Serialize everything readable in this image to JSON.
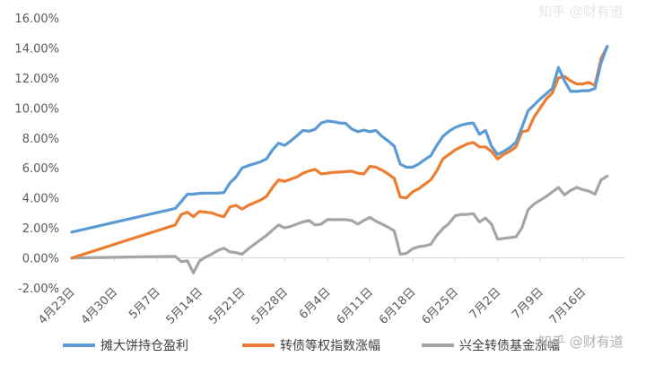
{
  "chart_data": {
    "type": "line",
    "title": "",
    "xlabel": "",
    "ylabel": "",
    "ylim": [
      -0.02,
      0.16
    ],
    "grid": false,
    "legend_position": "bottom",
    "y_ticks": [
      "-2.00%",
      "0.00%",
      "2.00%",
      "4.00%",
      "6.00%",
      "8.00%",
      "10.00%",
      "12.00%",
      "14.00%",
      "16.00%"
    ],
    "x_ticks": [
      {
        "label": "4月23日",
        "date": "2018-04-23"
      },
      {
        "label": "4月30日",
        "date": "2018-04-30"
      },
      {
        "label": "5月7日",
        "date": "2018-05-07"
      },
      {
        "label": "5月14日",
        "date": "2018-05-14"
      },
      {
        "label": "5月21日",
        "date": "2018-05-21"
      },
      {
        "label": "5月28日",
        "date": "2018-05-28"
      },
      {
        "label": "6月4日",
        "date": "2018-06-04"
      },
      {
        "label": "6月11日",
        "date": "2018-06-11"
      },
      {
        "label": "6月18日",
        "date": "2018-06-18"
      },
      {
        "label": "6月25日",
        "date": "2018-06-25"
      },
      {
        "label": "7月2日",
        "date": "2018-07-02"
      },
      {
        "label": "7月9日",
        "date": "2018-07-09"
      },
      {
        "label": "7月16日",
        "date": "2018-07-16"
      }
    ],
    "x_range": [
      "2018-04-23",
      "2018-07-23"
    ],
    "series": [
      {
        "name": "摊大饼持仓盈利",
        "color": "#5b9bd5",
        "points": [
          [
            "2018-04-23",
            0.0172
          ],
          [
            "2018-05-10",
            0.033
          ],
          [
            "2018-05-11",
            0.0375
          ],
          [
            "2018-05-12",
            0.0425
          ],
          [
            "2018-05-13",
            0.0425
          ],
          [
            "2018-05-14",
            0.043
          ],
          [
            "2018-05-15",
            0.0432
          ],
          [
            "2018-05-16",
            0.0432
          ],
          [
            "2018-05-17",
            0.0432
          ],
          [
            "2018-05-18",
            0.0435
          ],
          [
            "2018-05-19",
            0.05
          ],
          [
            "2018-05-20",
            0.054
          ],
          [
            "2018-05-21",
            0.06
          ],
          [
            "2018-05-22",
            0.0615
          ],
          [
            "2018-05-24",
            0.064
          ],
          [
            "2018-05-25",
            0.066
          ],
          [
            "2018-05-26",
            0.072
          ],
          [
            "2018-05-27",
            0.0765
          ],
          [
            "2018-05-28",
            0.075
          ],
          [
            "2018-05-29",
            0.078
          ],
          [
            "2018-05-30",
            0.0815
          ],
          [
            "2018-05-31",
            0.085
          ],
          [
            "2018-06-01",
            0.0845
          ],
          [
            "2018-06-02",
            0.0858
          ],
          [
            "2018-06-03",
            0.09
          ],
          [
            "2018-06-04",
            0.0912
          ],
          [
            "2018-06-05",
            0.0908
          ],
          [
            "2018-06-06",
            0.09
          ],
          [
            "2018-06-07",
            0.0898
          ],
          [
            "2018-06-08",
            0.086
          ],
          [
            "2018-06-09",
            0.0842
          ],
          [
            "2018-06-10",
            0.0852
          ],
          [
            "2018-06-11",
            0.0842
          ],
          [
            "2018-06-12",
            0.085
          ],
          [
            "2018-06-13",
            0.081
          ],
          [
            "2018-06-14",
            0.078
          ],
          [
            "2018-06-15",
            0.0745
          ],
          [
            "2018-06-16",
            0.0625
          ],
          [
            "2018-06-17",
            0.0605
          ],
          [
            "2018-06-18",
            0.0605
          ],
          [
            "2018-06-19",
            0.0625
          ],
          [
            "2018-06-20",
            0.0655
          ],
          [
            "2018-06-21",
            0.068
          ],
          [
            "2018-06-22",
            0.075
          ],
          [
            "2018-06-23",
            0.081
          ],
          [
            "2018-06-24",
            0.0845
          ],
          [
            "2018-06-25",
            0.087
          ],
          [
            "2018-06-26",
            0.0885
          ],
          [
            "2018-06-27",
            0.0895
          ],
          [
            "2018-06-28",
            0.09
          ],
          [
            "2018-06-29",
            0.0825
          ],
          [
            "2018-06-30",
            0.085
          ],
          [
            "2018-07-01",
            0.0745
          ],
          [
            "2018-07-02",
            0.069
          ],
          [
            "2018-07-03",
            0.071
          ],
          [
            "2018-07-04",
            0.0735
          ],
          [
            "2018-07-05",
            0.077
          ],
          [
            "2018-07-06",
            0.087
          ],
          [
            "2018-07-07",
            0.098
          ],
          [
            "2018-07-08",
            0.102
          ],
          [
            "2018-07-09",
            0.106
          ],
          [
            "2018-07-10",
            0.1095
          ],
          [
            "2018-07-11",
            0.113
          ],
          [
            "2018-07-12",
            0.127
          ],
          [
            "2018-07-13",
            0.118
          ],
          [
            "2018-07-14",
            0.111
          ],
          [
            "2018-07-15",
            0.111
          ],
          [
            "2018-07-16",
            0.1115
          ],
          [
            "2018-07-17",
            0.1115
          ],
          [
            "2018-07-18",
            0.113
          ],
          [
            "2018-07-19",
            0.13
          ],
          [
            "2018-07-20",
            0.141
          ]
        ]
      },
      {
        "name": "转债等权指数涨幅",
        "color": "#ed7d31",
        "points": [
          [
            "2018-04-23",
            0.0
          ],
          [
            "2018-05-10",
            0.022
          ],
          [
            "2018-05-11",
            0.029
          ],
          [
            "2018-05-12",
            0.0305
          ],
          [
            "2018-05-13",
            0.0275
          ],
          [
            "2018-05-14",
            0.031
          ],
          [
            "2018-05-15",
            0.0305
          ],
          [
            "2018-05-16",
            0.03
          ],
          [
            "2018-05-17",
            0.0285
          ],
          [
            "2018-05-18",
            0.0275
          ],
          [
            "2018-05-19",
            0.034
          ],
          [
            "2018-05-20",
            0.035
          ],
          [
            "2018-05-21",
            0.0325
          ],
          [
            "2018-05-22",
            0.035
          ],
          [
            "2018-05-24",
            0.0385
          ],
          [
            "2018-05-25",
            0.041
          ],
          [
            "2018-05-26",
            0.047
          ],
          [
            "2018-05-27",
            0.052
          ],
          [
            "2018-05-28",
            0.051
          ],
          [
            "2018-05-29",
            0.0525
          ],
          [
            "2018-05-30",
            0.054
          ],
          [
            "2018-05-31",
            0.0565
          ],
          [
            "2018-06-01",
            0.058
          ],
          [
            "2018-06-02",
            0.059
          ],
          [
            "2018-06-03",
            0.056
          ],
          [
            "2018-06-04",
            0.0565
          ],
          [
            "2018-06-05",
            0.057
          ],
          [
            "2018-06-06",
            0.0572
          ],
          [
            "2018-06-07",
            0.0575
          ],
          [
            "2018-06-08",
            0.0578
          ],
          [
            "2018-06-09",
            0.0565
          ],
          [
            "2018-06-10",
            0.056
          ],
          [
            "2018-06-11",
            0.061
          ],
          [
            "2018-06-12",
            0.0605
          ],
          [
            "2018-06-13",
            0.0585
          ],
          [
            "2018-06-14",
            0.056
          ],
          [
            "2018-06-15",
            0.053
          ],
          [
            "2018-06-16",
            0.0405
          ],
          [
            "2018-06-17",
            0.04
          ],
          [
            "2018-06-18",
            0.044
          ],
          [
            "2018-06-19",
            0.046
          ],
          [
            "2018-06-20",
            0.049
          ],
          [
            "2018-06-21",
            0.052
          ],
          [
            "2018-06-22",
            0.058
          ],
          [
            "2018-06-23",
            0.066
          ],
          [
            "2018-06-24",
            0.069
          ],
          [
            "2018-06-25",
            0.072
          ],
          [
            "2018-06-26",
            0.074
          ],
          [
            "2018-06-27",
            0.076
          ],
          [
            "2018-06-28",
            0.077
          ],
          [
            "2018-06-29",
            0.074
          ],
          [
            "2018-06-30",
            0.074
          ],
          [
            "2018-07-01",
            0.071
          ],
          [
            "2018-07-02",
            0.066
          ],
          [
            "2018-07-03",
            0.069
          ],
          [
            "2018-07-04",
            0.071
          ],
          [
            "2018-07-05",
            0.074
          ],
          [
            "2018-07-06",
            0.084
          ],
          [
            "2018-07-07",
            0.085
          ],
          [
            "2018-07-08",
            0.094
          ],
          [
            "2018-07-09",
            0.1
          ],
          [
            "2018-07-10",
            0.106
          ],
          [
            "2018-07-11",
            0.11
          ],
          [
            "2018-07-12",
            0.12
          ],
          [
            "2018-07-13",
            0.121
          ],
          [
            "2018-07-14",
            0.118
          ],
          [
            "2018-07-15",
            0.116
          ],
          [
            "2018-07-16",
            0.116
          ],
          [
            "2018-07-17",
            0.117
          ],
          [
            "2018-07-18",
            0.115
          ],
          [
            "2018-07-19",
            0.133
          ],
          [
            "2018-07-20",
            0.141
          ]
        ]
      },
      {
        "name": "兴全转债基金涨幅",
        "color": "#a5a5a5",
        "points": [
          [
            "2018-04-23",
            0.0
          ],
          [
            "2018-05-10",
            0.001
          ],
          [
            "2018-05-11",
            -0.0025
          ],
          [
            "2018-05-12",
            -0.002
          ],
          [
            "2018-05-13",
            -0.01
          ],
          [
            "2018-05-14",
            -0.002
          ],
          [
            "2018-05-15",
            0.0005
          ],
          [
            "2018-05-16",
            0.0025
          ],
          [
            "2018-05-17",
            0.005
          ],
          [
            "2018-05-18",
            0.0065
          ],
          [
            "2018-05-19",
            0.004
          ],
          [
            "2018-05-20",
            0.0035
          ],
          [
            "2018-05-21",
            0.0025
          ],
          [
            "2018-05-22",
            0.006
          ],
          [
            "2018-05-24",
            0.012
          ],
          [
            "2018-05-25",
            0.015
          ],
          [
            "2018-05-26",
            0.0185
          ],
          [
            "2018-05-27",
            0.022
          ],
          [
            "2018-05-28",
            0.02
          ],
          [
            "2018-05-29",
            0.021
          ],
          [
            "2018-05-30",
            0.0225
          ],
          [
            "2018-05-31",
            0.024
          ],
          [
            "2018-06-01",
            0.025
          ],
          [
            "2018-06-02",
            0.022
          ],
          [
            "2018-06-03",
            0.0225
          ],
          [
            "2018-06-04",
            0.0255
          ],
          [
            "2018-06-05",
            0.0255
          ],
          [
            "2018-06-06",
            0.0255
          ],
          [
            "2018-06-07",
            0.0255
          ],
          [
            "2018-06-08",
            0.025
          ],
          [
            "2018-06-09",
            0.0225
          ],
          [
            "2018-06-10",
            0.025
          ],
          [
            "2018-06-11",
            0.027
          ],
          [
            "2018-06-12",
            0.0245
          ],
          [
            "2018-06-13",
            0.0225
          ],
          [
            "2018-06-14",
            0.0205
          ],
          [
            "2018-06-15",
            0.018
          ],
          [
            "2018-06-16",
            0.0025
          ],
          [
            "2018-06-17",
            0.003
          ],
          [
            "2018-06-18",
            0.006
          ],
          [
            "2018-06-19",
            0.0075
          ],
          [
            "2018-06-20",
            0.008
          ],
          [
            "2018-06-21",
            0.009
          ],
          [
            "2018-06-22",
            0.015
          ],
          [
            "2018-06-23",
            0.0195
          ],
          [
            "2018-06-24",
            0.023
          ],
          [
            "2018-06-25",
            0.028
          ],
          [
            "2018-06-26",
            0.029
          ],
          [
            "2018-06-27",
            0.029
          ],
          [
            "2018-06-28",
            0.0295
          ],
          [
            "2018-06-29",
            0.024
          ],
          [
            "2018-06-30",
            0.0265
          ],
          [
            "2018-07-01",
            0.0225
          ],
          [
            "2018-07-02",
            0.0125
          ],
          [
            "2018-07-03",
            0.013
          ],
          [
            "2018-07-04",
            0.0135
          ],
          [
            "2018-07-05",
            0.014
          ],
          [
            "2018-07-06",
            0.02
          ],
          [
            "2018-07-07",
            0.032
          ],
          [
            "2018-07-08",
            0.036
          ],
          [
            "2018-07-09",
            0.0385
          ],
          [
            "2018-07-10",
            0.041
          ],
          [
            "2018-07-11",
            0.044
          ],
          [
            "2018-07-12",
            0.047
          ],
          [
            "2018-07-13",
            0.042
          ],
          [
            "2018-07-14",
            0.045
          ],
          [
            "2018-07-15",
            0.047
          ],
          [
            "2018-07-16",
            0.0455
          ],
          [
            "2018-07-17",
            0.0445
          ],
          [
            "2018-07-18",
            0.0425
          ],
          [
            "2018-07-19",
            0.052
          ],
          [
            "2018-07-20",
            0.0545
          ]
        ]
      }
    ]
  },
  "watermarks": {
    "top": "知乎 @财有道",
    "bottom": "知乎 @财有道"
  }
}
